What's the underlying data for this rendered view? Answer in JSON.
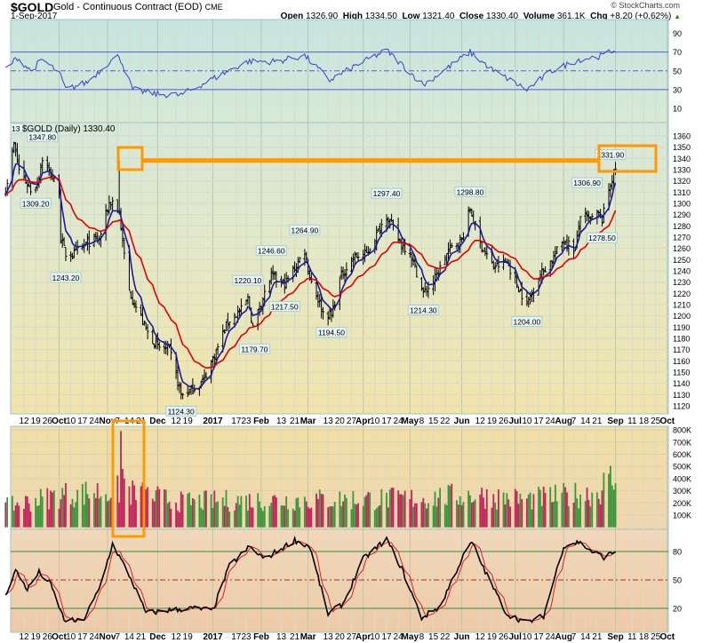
{
  "header": {
    "symbol": "$GOLD",
    "description": "Gold - Continuous Contract (EOD)",
    "exchange": "CME",
    "date": "1-Sep-2017",
    "copyright": "© StockCharts.com",
    "open_label": "Open",
    "open": "1326.90",
    "high_label": "High",
    "high": "1334.50",
    "low_label": "Low",
    "low": "1321.40",
    "close_label": "Close",
    "close": "1330.40",
    "volume_label": "Volume",
    "volume": "361.1K",
    "chg_label": "Chg",
    "chg": "+8.20 (+0.62%)",
    "chg_arrow": "▲"
  },
  "chart_data": {
    "type": "line",
    "title": "$GOLD (Daily) 1330.40",
    "cut_label": "13",
    "colors": {
      "price": "#000000",
      "ma_fast": "#1a1aa0",
      "ma_slow": "#e00000",
      "rsi": "#3344cc",
      "vol_up": "#3a963a",
      "vol_down": "#c0245a",
      "stoch_k": "#000000",
      "stoch_d": "#e02020",
      "annotation": "#ff9900"
    },
    "price_axis": {
      "ticks": [
        1120,
        1130,
        1140,
        1150,
        1160,
        1170,
        1180,
        1190,
        1200,
        1210,
        1220,
        1230,
        1240,
        1250,
        1260,
        1270,
        1280,
        1290,
        1300,
        1310,
        1320,
        1330,
        1340,
        1350,
        1360
      ]
    },
    "rsi_axis": {
      "ticks": [
        10,
        30,
        50,
        70,
        90
      ],
      "lines": [
        30,
        50,
        70
      ]
    },
    "volume_axis": {
      "ticks": [
        "100K",
        "200K",
        "300K",
        "400K",
        "500K",
        "600K",
        "700K",
        "800K"
      ],
      "values": [
        100,
        200,
        300,
        400,
        500,
        600,
        700,
        800
      ]
    },
    "stoch_axis": {
      "ticks": [
        20,
        50,
        80
      ]
    },
    "price_keypoints": [
      [
        "2016-09-01",
        1312
      ],
      [
        "2016-09-06",
        1352
      ],
      [
        "2016-09-09",
        1330
      ],
      [
        "2016-09-16",
        1312
      ],
      [
        "2016-09-20",
        1318
      ],
      [
        "2016-09-23",
        1340
      ],
      [
        "2016-09-28",
        1325
      ],
      [
        "2016-10-03",
        1312
      ],
      [
        "2016-10-04",
        1268
      ],
      [
        "2016-10-07",
        1255
      ],
      [
        "2016-10-12",
        1255
      ],
      [
        "2016-10-20",
        1265
      ],
      [
        "2016-10-27",
        1268
      ],
      [
        "2016-11-02",
        1300
      ],
      [
        "2016-11-04",
        1302
      ],
      [
        "2016-11-08",
        1292
      ],
      [
        "2016-11-10",
        1265
      ],
      [
        "2016-11-14",
        1222
      ],
      [
        "2016-11-18",
        1208
      ],
      [
        "2016-11-25",
        1185
      ],
      [
        "2016-12-01",
        1172
      ],
      [
        "2016-12-08",
        1170
      ],
      [
        "2016-12-15",
        1130
      ],
      [
        "2016-12-20",
        1133
      ],
      [
        "2016-12-28",
        1142
      ],
      [
        "2017-01-04",
        1165
      ],
      [
        "2017-01-12",
        1195
      ],
      [
        "2017-01-20",
        1205
      ],
      [
        "2017-01-24",
        1215
      ],
      [
        "2017-01-27",
        1190
      ],
      [
        "2017-02-01",
        1212
      ],
      [
        "2017-02-07",
        1235
      ],
      [
        "2017-02-15",
        1228
      ],
      [
        "2017-02-22",
        1245
      ],
      [
        "2017-02-27",
        1258
      ],
      [
        "2017-03-02",
        1235
      ],
      [
        "2017-03-10",
        1203
      ],
      [
        "2017-03-15",
        1200
      ],
      [
        "2017-03-20",
        1233
      ],
      [
        "2017-03-28",
        1252
      ],
      [
        "2017-04-05",
        1255
      ],
      [
        "2017-04-12",
        1275
      ],
      [
        "2017-04-17",
        1290
      ],
      [
        "2017-04-25",
        1265
      ],
      [
        "2017-05-01",
        1257
      ],
      [
        "2017-05-09",
        1220
      ],
      [
        "2017-05-15",
        1230
      ],
      [
        "2017-05-24",
        1258
      ],
      [
        "2017-06-01",
        1268
      ],
      [
        "2017-06-06",
        1295
      ],
      [
        "2017-06-12",
        1265
      ],
      [
        "2017-06-20",
        1243
      ],
      [
        "2017-06-28",
        1248
      ],
      [
        "2017-07-05",
        1225
      ],
      [
        "2017-07-10",
        1210
      ],
      [
        "2017-07-17",
        1235
      ],
      [
        "2017-07-25",
        1250
      ],
      [
        "2017-08-01",
        1268
      ],
      [
        "2017-08-08",
        1258
      ],
      [
        "2017-08-11",
        1290
      ],
      [
        "2017-08-16",
        1285
      ],
      [
        "2017-08-22",
        1290
      ],
      [
        "2017-08-24",
        1285
      ],
      [
        "2017-08-28",
        1312
      ],
      [
        "2017-08-29",
        1318
      ],
      [
        "2017-09-01",
        1330.4
      ]
    ],
    "spike_high": [
      "2016-11-08",
      1338
    ],
    "annotations": [
      {
        "date": "2016-09-23",
        "value": 1347.8,
        "label": "1347.80",
        "pos": "above"
      },
      {
        "date": "2016-09-19",
        "value": 1309.2,
        "label": "1309.20",
        "pos": "below"
      },
      {
        "date": "2016-10-07",
        "value": 1243.2,
        "label": "1243.20",
        "pos": "below"
      },
      {
        "date": "2016-12-15",
        "value": 1124.3,
        "label": "1124.30",
        "pos": "below"
      },
      {
        "date": "2017-01-24",
        "value": 1220.1,
        "label": "1220.10",
        "pos": "above"
      },
      {
        "date": "2017-01-28",
        "value": 1179.7,
        "label": "1179.70",
        "pos": "below"
      },
      {
        "date": "2017-02-07",
        "value": 1246.6,
        "label": "1246.60",
        "pos": "above"
      },
      {
        "date": "2017-02-15",
        "value": 1217.5,
        "label": "1217.50",
        "pos": "below"
      },
      {
        "date": "2017-02-27",
        "value": 1264.9,
        "label": "1264.90",
        "pos": "above"
      },
      {
        "date": "2017-03-15",
        "value": 1194.5,
        "label": "1194.50",
        "pos": "below"
      },
      {
        "date": "2017-04-17",
        "value": 1297.4,
        "label": "1297.40",
        "pos": "above"
      },
      {
        "date": "2017-05-09",
        "value": 1214.3,
        "label": "1214.30",
        "pos": "below"
      },
      {
        "date": "2017-06-06",
        "value": 1298.8,
        "label": "1298.80",
        "pos": "above"
      },
      {
        "date": "2017-07-10",
        "value": 1204.0,
        "label": "1204.00",
        "pos": "below"
      },
      {
        "date": "2017-08-15",
        "value": 1306.9,
        "label": "1306.90",
        "pos": "above"
      },
      {
        "date": "2017-08-24",
        "value": 1278.5,
        "label": "1278.50",
        "pos": "below"
      },
      {
        "date": "2017-08-29",
        "value": 1331.9,
        "label": "1331.90",
        "pos": "above"
      }
    ],
    "resistance_level": 1338,
    "rsi_keypoints": [
      [
        "2016-09-01",
        52
      ],
      [
        "2016-09-08",
        64
      ],
      [
        "2016-09-16",
        50
      ],
      [
        "2016-09-23",
        62
      ],
      [
        "2016-10-03",
        48
      ],
      [
        "2016-10-07",
        30
      ],
      [
        "2016-10-20",
        38
      ],
      [
        "2016-11-01",
        58
      ],
      [
        "2016-11-08",
        66
      ],
      [
        "2016-11-16",
        30
      ],
      [
        "2016-12-01",
        25
      ],
      [
        "2016-12-15",
        24
      ],
      [
        "2016-12-30",
        38
      ],
      [
        "2017-01-24",
        60
      ],
      [
        "2017-02-10",
        60
      ],
      [
        "2017-02-27",
        66
      ],
      [
        "2017-03-14",
        40
      ],
      [
        "2017-03-30",
        56
      ],
      [
        "2017-04-17",
        72
      ],
      [
        "2017-05-09",
        35
      ],
      [
        "2017-06-06",
        70
      ],
      [
        "2017-06-20",
        50
      ],
      [
        "2017-07-10",
        30
      ],
      [
        "2017-07-25",
        50
      ],
      [
        "2017-08-10",
        62
      ],
      [
        "2017-08-24",
        66
      ],
      [
        "2017-09-01",
        73
      ]
    ],
    "volume_keypoints": [
      [
        "2016-09-01",
        180
      ],
      [
        "2016-10-04",
        280
      ],
      [
        "2016-11-08",
        320
      ],
      [
        "2016-11-09",
        790
      ],
      [
        "2016-11-10",
        480
      ],
      [
        "2016-11-11",
        400
      ],
      [
        "2016-11-15",
        300
      ],
      [
        "2016-12-15",
        220
      ],
      [
        "2017-01-10",
        230
      ],
      [
        "2017-03-10",
        240
      ],
      [
        "2017-05-09",
        250
      ],
      [
        "2017-06-06",
        280
      ],
      [
        "2017-07-10",
        240
      ],
      [
        "2017-08-22",
        300
      ],
      [
        "2017-08-28",
        440
      ],
      [
        "2017-09-01",
        361
      ]
    ],
    "stoch_keypoints": [
      [
        "2016-09-01",
        35
      ],
      [
        "2016-09-07",
        60
      ],
      [
        "2016-09-14",
        40
      ],
      [
        "2016-09-21",
        58
      ],
      [
        "2016-09-28",
        45
      ],
      [
        "2016-10-06",
        8
      ],
      [
        "2016-10-17",
        6
      ],
      [
        "2016-10-27",
        40
      ],
      [
        "2016-11-04",
        88
      ],
      [
        "2016-11-14",
        55
      ],
      [
        "2016-11-24",
        15
      ],
      [
        "2016-12-08",
        18
      ],
      [
        "2016-12-22",
        20
      ],
      [
        "2017-01-03",
        18
      ],
      [
        "2017-01-13",
        65
      ],
      [
        "2017-01-25",
        85
      ],
      [
        "2017-02-03",
        72
      ],
      [
        "2017-02-21",
        92
      ],
      [
        "2017-03-02",
        85
      ],
      [
        "2017-03-13",
        14
      ],
      [
        "2017-03-22",
        25
      ],
      [
        "2017-04-03",
        72
      ],
      [
        "2017-04-17",
        93
      ],
      [
        "2017-04-26",
        62
      ],
      [
        "2017-05-08",
        10
      ],
      [
        "2017-05-19",
        22
      ],
      [
        "2017-06-01",
        72
      ],
      [
        "2017-06-07",
        90
      ],
      [
        "2017-06-16",
        55
      ],
      [
        "2017-06-28",
        14
      ],
      [
        "2017-07-10",
        5
      ],
      [
        "2017-07-20",
        12
      ],
      [
        "2017-08-01",
        86
      ],
      [
        "2017-08-10",
        90
      ],
      [
        "2017-08-18",
        80
      ],
      [
        "2017-08-25",
        74
      ],
      [
        "2017-09-01",
        80
      ]
    ],
    "x_axis_labels": [
      [
        "2016-09-12",
        "12",
        0
      ],
      [
        "2016-09-19",
        "19",
        0
      ],
      [
        "2016-09-26",
        "26",
        0
      ],
      [
        "2016-10-03",
        "Oct",
        1
      ],
      [
        "2016-10-10",
        "10",
        0
      ],
      [
        "2016-10-17",
        "17",
        0
      ],
      [
        "2016-10-24",
        "24",
        0
      ],
      [
        "2016-11-01",
        "Nov",
        1
      ],
      [
        "2016-11-07",
        "7",
        0
      ],
      [
        "2016-11-14",
        "14",
        0
      ],
      [
        "2016-11-21",
        "21",
        0
      ],
      [
        "2016-12-01",
        "Dec",
        1
      ],
      [
        "2016-12-12",
        "12",
        0
      ],
      [
        "2016-12-19",
        "19",
        0
      ],
      [
        "2017-01-03",
        "2017",
        1
      ],
      [
        "2017-01-17",
        "17",
        0
      ],
      [
        "2017-01-23",
        "23",
        0
      ],
      [
        "2017-02-01",
        "Feb",
        1
      ],
      [
        "2017-02-13",
        "13",
        0
      ],
      [
        "2017-02-21",
        "21",
        0
      ],
      [
        "2017-03-01",
        "Mar",
        1
      ],
      [
        "2017-03-13",
        "13",
        0
      ],
      [
        "2017-03-20",
        "20",
        0
      ],
      [
        "2017-03-27",
        "27",
        0
      ],
      [
        "2017-04-03",
        "Apr",
        1
      ],
      [
        "2017-04-10",
        "10",
        0
      ],
      [
        "2017-04-17",
        "17",
        0
      ],
      [
        "2017-04-24",
        "24",
        0
      ],
      [
        "2017-05-01",
        "May",
        1
      ],
      [
        "2017-05-08",
        "8",
        0
      ],
      [
        "2017-05-15",
        "15",
        0
      ],
      [
        "2017-05-22",
        "22",
        0
      ],
      [
        "2017-06-01",
        "Jun",
        1
      ],
      [
        "2017-06-12",
        "12",
        0
      ],
      [
        "2017-06-19",
        "19",
        0
      ],
      [
        "2017-06-26",
        "26",
        0
      ],
      [
        "2017-07-03",
        "Jul",
        1
      ],
      [
        "2017-07-10",
        "10",
        0
      ],
      [
        "2017-07-17",
        "17",
        0
      ],
      [
        "2017-07-24",
        "24",
        0
      ],
      [
        "2017-08-01",
        "Aug",
        1
      ],
      [
        "2017-08-07",
        "7",
        0
      ],
      [
        "2017-08-14",
        "14",
        0
      ],
      [
        "2017-08-21",
        "21",
        0
      ],
      [
        "2017-09-01",
        "Sep",
        1
      ],
      [
        "2017-09-11",
        "11",
        0
      ],
      [
        "2017-09-18",
        "18",
        0
      ],
      [
        "2017-09-25",
        "25",
        0
      ],
      [
        "2017-10-02",
        "Oct",
        1
      ]
    ]
  }
}
